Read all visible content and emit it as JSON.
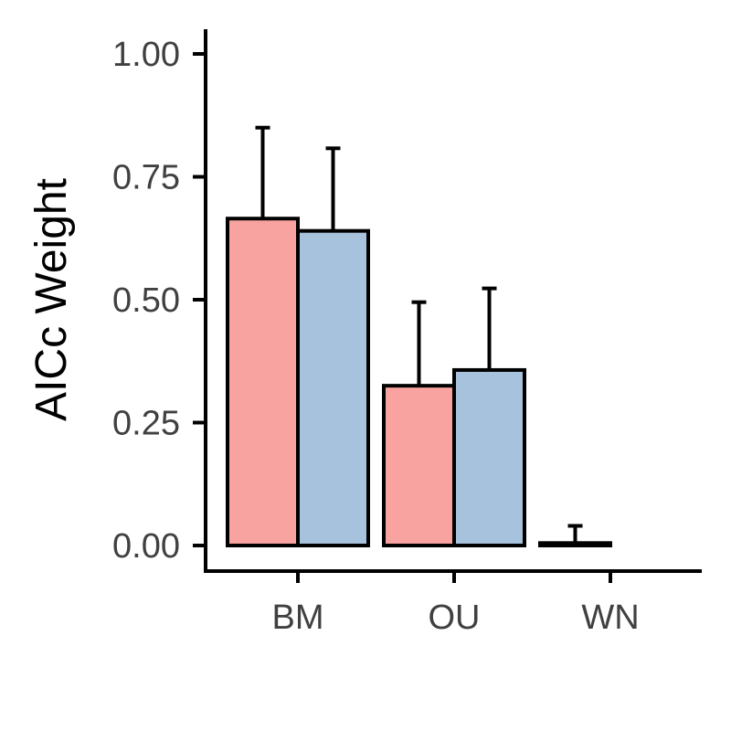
{
  "chart_data": {
    "type": "bar",
    "title": "",
    "xlabel": "",
    "ylabel": "AICc Weight",
    "ylim": [
      -0.05,
      1.05
    ],
    "yticks": [
      0.0,
      0.25,
      0.5,
      0.75,
      1.0
    ],
    "ytick_labels": [
      "0.00",
      "0.25",
      "0.50",
      "0.75",
      "1.00"
    ],
    "categories": [
      "BM",
      "OU",
      "WN"
    ],
    "legend": "none",
    "grid": false,
    "series": [
      {
        "color": "#f8a39f",
        "values": [
          0.665,
          0.325,
          0.005
        ],
        "error_upper": [
          0.85,
          0.495,
          0.04
        ]
      },
      {
        "color": "#a7c2dc",
        "values": [
          0.64,
          0.357,
          0.0
        ],
        "error_upper": [
          0.808,
          0.523,
          null
        ]
      }
    ]
  }
}
